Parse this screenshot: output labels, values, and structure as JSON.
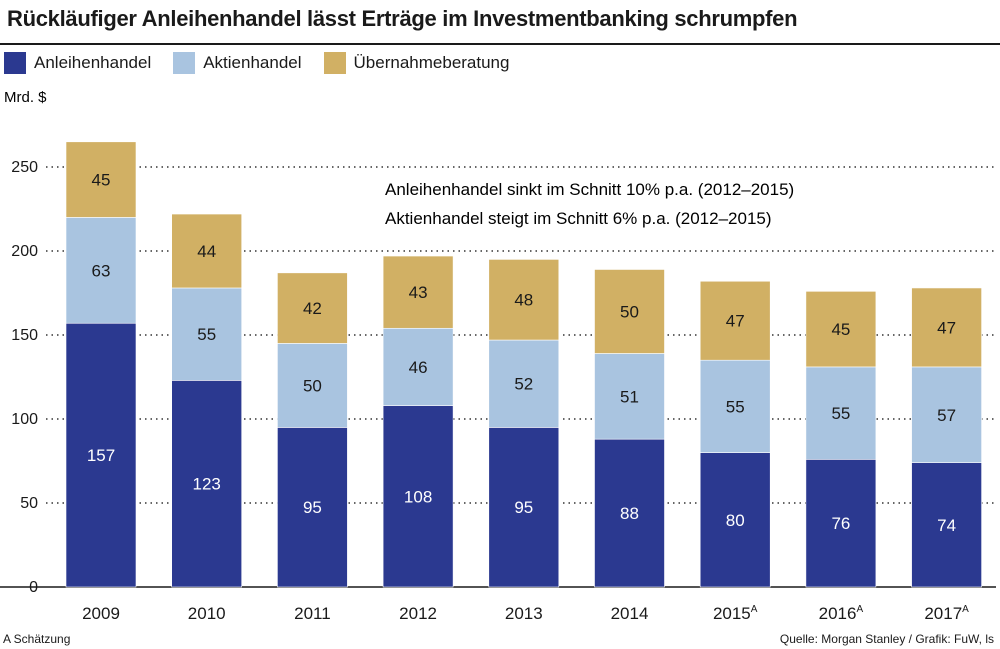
{
  "title": "Rückläufiger Anleihenhandel lässt Erträge im Investmentbanking schrumpfen",
  "footnote": "A Schätzung",
  "source": "Quelle: Morgan Stanley / Grafik: FuW, ls",
  "colors": {
    "anleihen": "#2b3990",
    "aktien": "#a9c4e0",
    "uebernahme": "#d1b064",
    "grid": "#333333",
    "text": "#1a1a1a"
  },
  "chart_data": {
    "type": "bar",
    "stacked": true,
    "ylabel": "Mrd. $",
    "ylim": [
      0,
      260
    ],
    "yticks": [
      0,
      50,
      100,
      150,
      200,
      250
    ],
    "grid": "dotted horizontal",
    "legend_position": "top-left",
    "categories": [
      {
        "label": "2009",
        "sup": ""
      },
      {
        "label": "2010",
        "sup": ""
      },
      {
        "label": "2011",
        "sup": ""
      },
      {
        "label": "2012",
        "sup": ""
      },
      {
        "label": "2013",
        "sup": ""
      },
      {
        "label": "2014",
        "sup": ""
      },
      {
        "label": "2015",
        "sup": "A"
      },
      {
        "label": "2016",
        "sup": "A"
      },
      {
        "label": "2017",
        "sup": "A"
      }
    ],
    "series": [
      {
        "name": "Anleihenhandel",
        "color_key": "anleihen",
        "values": [
          157,
          123,
          95,
          108,
          95,
          88,
          80,
          76,
          74
        ]
      },
      {
        "name": "Aktienhandel",
        "color_key": "aktien",
        "values": [
          63,
          55,
          50,
          46,
          52,
          51,
          55,
          55,
          57
        ]
      },
      {
        "name": "Übernahmeberatung",
        "color_key": "uebernahme",
        "values": [
          45,
          44,
          42,
          43,
          48,
          50,
          47,
          45,
          47
        ]
      }
    ],
    "annotations": [
      "Anleihenhandel sinkt im Schnitt 10% p.a. (2012–2015)",
      "Aktienhandel steigt im Schnitt 6% p.a. (2012–2015)"
    ]
  }
}
